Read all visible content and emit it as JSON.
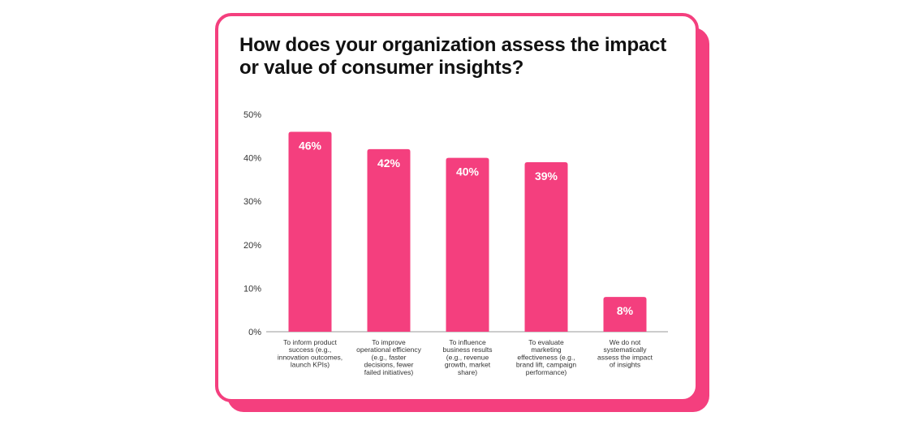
{
  "title": "How does your organization assess the impact or value of consumer insights?",
  "colors": {
    "accent": "#f43f7e",
    "text": "#111111"
  },
  "chart_data": {
    "type": "bar",
    "title": "How does your organization assess the impact or value of consumer insights?",
    "categories": [
      [
        "To inform product",
        "success (e.g.,",
        "innovation outcomes,",
        "launch KPIs)"
      ],
      [
        "To improve",
        "operational efficiency",
        "(e.g., faster",
        "decisions, fewer",
        "failed initiatives)"
      ],
      [
        "To influence",
        "business results",
        "(e.g., revenue",
        "growth, market",
        "share)"
      ],
      [
        "To evaluate",
        "marketing",
        "effectiveness (e.g.,",
        "brand lift, campaign",
        "performance)"
      ],
      [
        "We do not",
        "systematically",
        "assess the impact",
        "of insights"
      ]
    ],
    "values": [
      46,
      42,
      40,
      39,
      8
    ],
    "data_labels": [
      "46%",
      "42%",
      "40%",
      "39%",
      "8%"
    ],
    "y_ticks": [
      "0%",
      "10%",
      "20%",
      "30%",
      "40%",
      "50%"
    ],
    "ylim": [
      0,
      50
    ],
    "grid": false,
    "bar_color": "#f43f7e"
  }
}
